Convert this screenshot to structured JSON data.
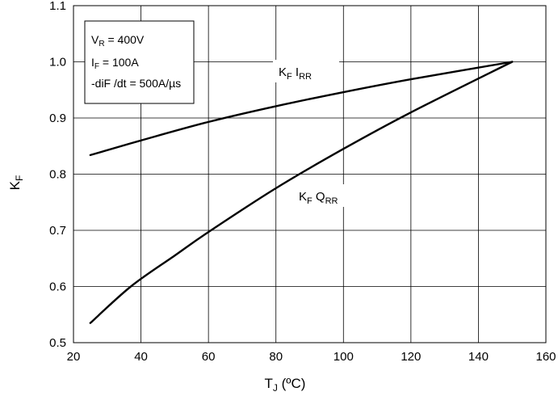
{
  "chart_data": {
    "type": "line",
    "xlabel": {
      "main": "T",
      "sub": "J",
      "rest": " (ºC)"
    },
    "ylabel": {
      "main": "K",
      "sub": "F"
    },
    "xlim": [
      20,
      160
    ],
    "ylim": [
      0.5,
      1.1
    ],
    "xticks": [
      "20",
      "40",
      "60",
      "80",
      "100",
      "120",
      "140",
      "160"
    ],
    "yticks": [
      "0.5",
      "0.6",
      "0.7",
      "0.8",
      "0.9",
      "1.0",
      "1.1"
    ],
    "grid": true,
    "conditions": [
      {
        "main": "V",
        "sub": "R",
        "rest": " = 400V"
      },
      {
        "main": "I",
        "sub": "F",
        "rest": " = 100A"
      },
      {
        "main": "-diF /dt = 500A/µs",
        "sub": "",
        "rest": ""
      }
    ],
    "series": [
      {
        "name": {
          "main": "K",
          "sub": "F",
          "main2": " I",
          "sub2": "RR"
        },
        "x": [
          25,
          40,
          60,
          80,
          100,
          120,
          150
        ],
        "y": [
          0.834,
          0.86,
          0.893,
          0.921,
          0.946,
          0.969,
          1.0
        ]
      },
      {
        "name": {
          "main": "K",
          "sub": "F",
          "main2": " Q",
          "sub2": "RR"
        },
        "x": [
          25,
          37,
          50,
          60,
          80,
          100,
          120,
          150
        ],
        "y": [
          0.535,
          0.6,
          0.655,
          0.697,
          0.775,
          0.845,
          0.91,
          1.0
        ]
      }
    ],
    "line_color": "#000000",
    "grid_color": "#000000"
  }
}
